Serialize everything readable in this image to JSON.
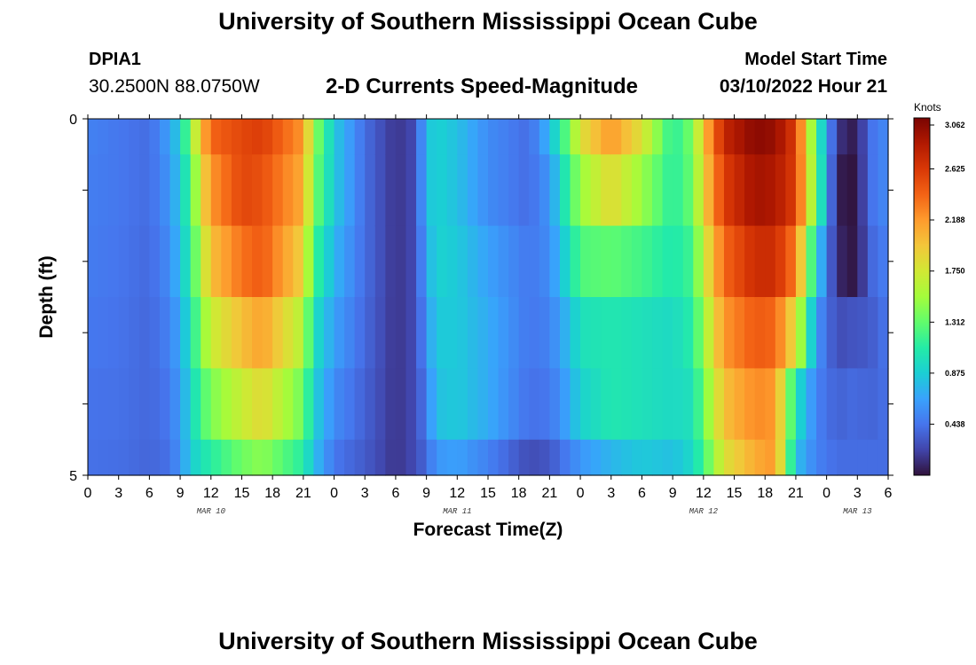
{
  "header": {
    "title": "University of Southern Mississippi Ocean Cube",
    "station_id": "DPIA1",
    "station_coords": "30.2500N  88.0750W",
    "subtitle": "2-D Currents Speed-Magnitude",
    "start_label": "Model Start Time",
    "start_value": "03/10/2022 Hour 21"
  },
  "footer": {
    "title": "University of Southern Mississippi Ocean Cube"
  },
  "chart_data": {
    "type": "heatmap",
    "xlabel": "Forecast Time(Z)",
    "ylabel": "Depth (ft)",
    "x_start_hour": 0,
    "x_end_hour": 78,
    "x_tick_step_hours": 3,
    "x_tick_labels": [
      "0",
      "3",
      "6",
      "9",
      "12",
      "15",
      "18",
      "21",
      "0",
      "3",
      "6",
      "9",
      "12",
      "15",
      "18",
      "21",
      "0",
      "3",
      "6",
      "9",
      "12",
      "15",
      "18",
      "21",
      "0",
      "3",
      "6"
    ],
    "date_labels": [
      {
        "text": "MAR 10",
        "hour": 12
      },
      {
        "text": "MAR 11",
        "hour": 36
      },
      {
        "text": "MAR 12",
        "hour": 60
      },
      {
        "text": "MAR 13",
        "hour": 75
      }
    ],
    "ylim": [
      0,
      5
    ],
    "y_tick_labels": [
      "0",
      "5"
    ],
    "depth_rows": 5,
    "colorbar": {
      "label": "Knots",
      "min": 0.0,
      "max": 3.062,
      "tick_values": [
        3.062,
        2.625,
        2.188,
        1.75,
        1.312,
        0.875,
        0.438
      ],
      "tick_labels": [
        "3.062",
        "2.625",
        "2.188",
        "1.750",
        "1.312",
        "0.875",
        "0.438"
      ],
      "colors": [
        "#30123b",
        "#4145ab",
        "#4675ed",
        "#39a2fc",
        "#1bcfd4",
        "#24eca6",
        "#61fc6c",
        "#a4fc3b",
        "#d1e834",
        "#f3c63a",
        "#fe9b2d",
        "#f36315",
        "#d93806",
        "#b11901",
        "#7a0402"
      ]
    },
    "speed_profiles": [
      {
        "hour": 0,
        "values": [
          0.5,
          0.48,
          0.47,
          0.45,
          0.43,
          0.42
        ]
      },
      {
        "hour": 3,
        "values": [
          0.45,
          0.45,
          0.44,
          0.43,
          0.42,
          0.41
        ]
      },
      {
        "hour": 6,
        "values": [
          0.4,
          0.4,
          0.39,
          0.38,
          0.38,
          0.37
        ]
      },
      {
        "hour": 8,
        "values": [
          0.65,
          0.6,
          0.55,
          0.5,
          0.45,
          0.42
        ]
      },
      {
        "hour": 9,
        "values": [
          0.9,
          0.85,
          0.8,
          0.7,
          0.65,
          0.6
        ]
      },
      {
        "hour": 10,
        "values": [
          1.4,
          1.2,
          1.1,
          1.0,
          0.9,
          0.85
        ]
      },
      {
        "hour": 11,
        "values": [
          2.0,
          1.8,
          1.6,
          1.4,
          1.2,
          1.0
        ]
      },
      {
        "hour": 12,
        "values": [
          2.4,
          2.2,
          2.0,
          1.7,
          1.4,
          1.1
        ]
      },
      {
        "hour": 15,
        "values": [
          2.55,
          2.55,
          2.35,
          2.0,
          1.7,
          1.35
        ]
      },
      {
        "hour": 17,
        "values": [
          2.6,
          2.5,
          2.45,
          2.15,
          1.85,
          1.45
        ]
      },
      {
        "hour": 21,
        "values": [
          2.2,
          2.1,
          1.9,
          1.6,
          1.35,
          1.1
        ]
      },
      {
        "hour": 22,
        "values": [
          1.5,
          1.4,
          1.2,
          1.0,
          0.9,
          0.8
        ]
      },
      {
        "hour": 24,
        "values": [
          0.85,
          0.85,
          0.75,
          0.65,
          0.55,
          0.45
        ]
      },
      {
        "hour": 27,
        "values": [
          0.4,
          0.4,
          0.4,
          0.38,
          0.35,
          0.32
        ]
      },
      {
        "hour": 30,
        "values": [
          0.15,
          0.15,
          0.15,
          0.15,
          0.15,
          0.15
        ]
      },
      {
        "hour": 32,
        "values": [
          0.25,
          0.25,
          0.25,
          0.25,
          0.25,
          0.25
        ]
      },
      {
        "hour": 33,
        "values": [
          0.8,
          0.8,
          0.7,
          0.6,
          0.5,
          0.4
        ]
      },
      {
        "hour": 34,
        "values": [
          0.9,
          0.9,
          0.9,
          0.85,
          0.8,
          0.6
        ]
      },
      {
        "hour": 36,
        "values": [
          0.8,
          0.8,
          0.85,
          0.85,
          0.85,
          0.65
        ]
      },
      {
        "hour": 39,
        "values": [
          0.55,
          0.55,
          0.65,
          0.7,
          0.7,
          0.5
        ]
      },
      {
        "hour": 43,
        "values": [
          0.4,
          0.4,
          0.45,
          0.45,
          0.42,
          0.25
        ]
      },
      {
        "hour": 45,
        "values": [
          0.75,
          0.6,
          0.55,
          0.5,
          0.45,
          0.3
        ]
      },
      {
        "hour": 47,
        "values": [
          1.4,
          1.2,
          1.0,
          0.8,
          0.7,
          0.5
        ]
      },
      {
        "hour": 48,
        "values": [
          1.8,
          1.5,
          1.25,
          1.0,
          0.9,
          0.6
        ]
      },
      {
        "hour": 51,
        "values": [
          2.2,
          1.85,
          1.3,
          1.05,
          1.05,
          0.75
        ]
      },
      {
        "hour": 54,
        "values": [
          1.8,
          1.5,
          1.2,
          1.0,
          1.0,
          0.85
        ]
      },
      {
        "hour": 57,
        "values": [
          1.1,
          1.1,
          1.05,
          0.95,
          0.95,
          0.8
        ]
      },
      {
        "hour": 59,
        "values": [
          1.4,
          1.35,
          1.2,
          1.1,
          1.0,
          0.95
        ]
      },
      {
        "hour": 60,
        "values": [
          2.0,
          1.9,
          1.7,
          1.5,
          1.35,
          1.2
        ]
      },
      {
        "hour": 62,
        "values": [
          2.75,
          2.6,
          2.4,
          2.2,
          2.0,
          1.8
        ]
      },
      {
        "hour": 65,
        "values": [
          3.0,
          2.9,
          2.7,
          2.45,
          2.25,
          2.1
        ]
      },
      {
        "hour": 67,
        "values": [
          2.95,
          2.85,
          2.7,
          2.4,
          2.2,
          2.2
        ]
      },
      {
        "hour": 69,
        "values": [
          2.6,
          2.6,
          2.3,
          1.8,
          1.0,
          0.8
        ]
      },
      {
        "hour": 71,
        "values": [
          1.2,
          1.3,
          0.9,
          0.6,
          0.5,
          0.5
        ]
      },
      {
        "hour": 73,
        "values": [
          0.15,
          0.05,
          0.1,
          0.25,
          0.35,
          0.4
        ]
      },
      {
        "hour": 75,
        "values": [
          0.02,
          0.0,
          0.0,
          0.3,
          0.4,
          0.4
        ]
      },
      {
        "hour": 76,
        "values": [
          0.4,
          0.4,
          0.35,
          0.3,
          0.35,
          0.4
        ]
      },
      {
        "hour": 78,
        "values": [
          0.55,
          0.55,
          0.5,
          0.45,
          0.42,
          0.4
        ]
      }
    ]
  }
}
